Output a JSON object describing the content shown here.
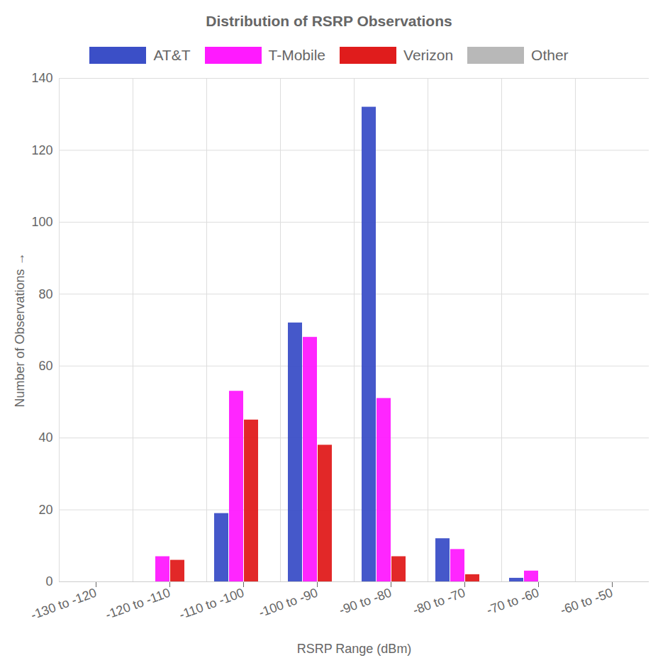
{
  "chart_data": {
    "type": "bar",
    "title": "Distribution of RSRP Observations",
    "x_label": "RSRP Range (dBm)",
    "y_label": "Number of Observations",
    "categories": [
      "-130 to -120",
      "-120 to -110",
      "-110 to -100",
      "-100 to -90",
      "-90 to -80",
      "-80 to -70",
      "-70 to -60",
      "-60 to -50"
    ],
    "series": [
      {
        "name": "AT&T",
        "color": "#3b4fc7",
        "values": [
          0,
          0,
          19,
          72,
          132,
          12,
          1,
          0
        ]
      },
      {
        "name": "T-Mobile",
        "color": "#ff1aff",
        "values": [
          0,
          7,
          53,
          68,
          51,
          9,
          3,
          0
        ]
      },
      {
        "name": "Verizon",
        "color": "#e01c1c",
        "values": [
          0,
          6,
          45,
          38,
          7,
          2,
          0,
          0
        ]
      },
      {
        "name": "Other",
        "color": "#b8b8b8",
        "values": [
          0,
          0,
          0,
          0,
          0,
          0,
          0,
          0
        ]
      }
    ],
    "ylim": [
      0,
      140
    ],
    "yticks": [
      0,
      20,
      40,
      60,
      80,
      100,
      120,
      140
    ],
    "grid": true,
    "legend": "top"
  }
}
